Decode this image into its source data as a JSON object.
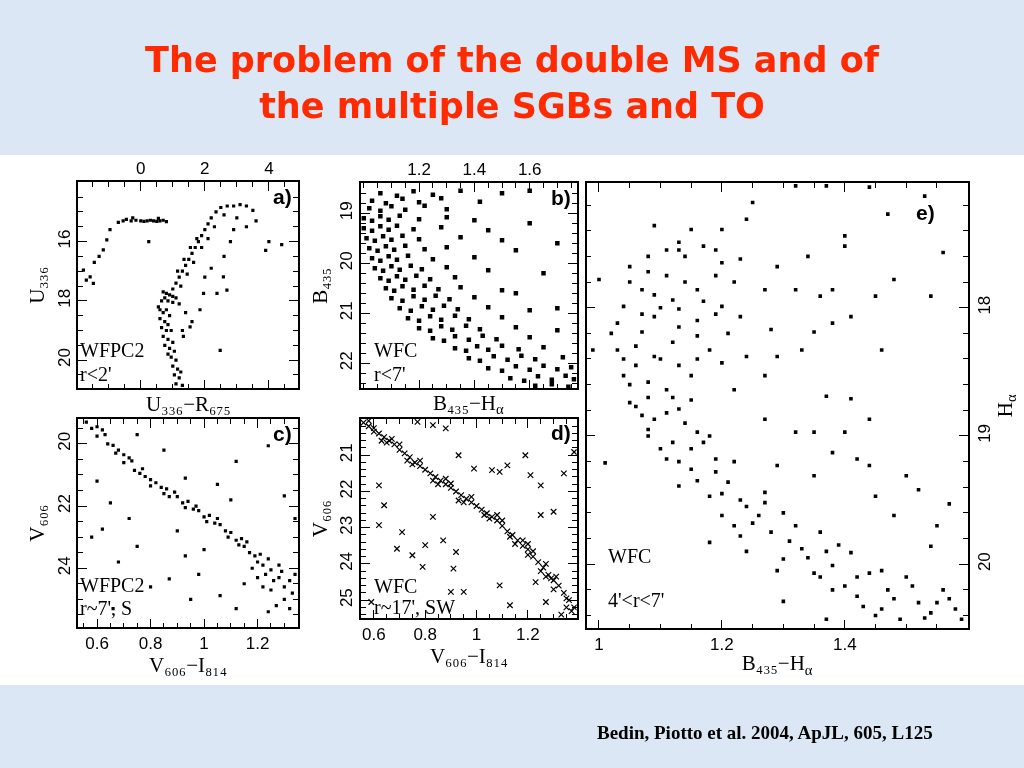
{
  "chart_data": [
    {
      "type": "scatter",
      "title": "The problem of the double MS and of the multiple SGBs and TO",
      "xlabel": "U₃₃₆−R₆₇₅",
      "ylabel": "U₃₃₆",
      "xlim": [
        -1.95,
        4.9
      ],
      "ylim": [
        20.95,
        14
      ],
      "xticks": [
        {
          "value": -1.5,
          "label": null
        },
        {
          "value": -1,
          "label": null
        },
        {
          "value": -0.5,
          "label": null
        },
        0,
        {
          "value": 0.5,
          "label": null
        },
        {
          "value": 1,
          "label": null
        },
        {
          "value": 1.5,
          "label": null
        },
        2,
        {
          "value": 2.5,
          "label": null
        },
        {
          "value": 3,
          "label": null
        },
        {
          "value": 3.5,
          "label": null
        },
        4,
        {
          "value": 4.5,
          "label": null
        }
      ],
      "yticks": [
        {
          "value": 14.5,
          "label": null
        },
        {
          "value": 15,
          "label": null
        },
        {
          "value": 15.5,
          "label": null
        },
        16,
        {
          "value": 16.5,
          "label": null
        },
        {
          "value": 17,
          "label": null
        },
        {
          "value": 17.5,
          "label": null
        },
        18,
        {
          "value": 18.5,
          "label": null
        },
        {
          "value": 19,
          "label": null
        },
        {
          "value": 19.5,
          "label": null
        },
        20,
        {
          "value": 20.5,
          "label": null
        }
      ],
      "marker": "square",
      "annotations": [
        "a)",
        "WFPC2",
        "r<2'"
      ],
      "series": [
        {
          "color": "#000000",
          "x": [
            -0.7,
            -0.55,
            -0.45,
            -0.3,
            -0.15,
            0,
            0.1,
            0.2,
            0.3,
            0.4,
            0.5,
            0.6,
            0.7,
            0.8,
            -0.25,
            0.55,
            -0.96,
            -1.06,
            -1.17,
            -1.3,
            -1.45,
            -1.79,
            -1.58,
            -1.48,
            -1.7,
            0.25,
            1.0,
            1.1,
            1.2,
            1.3,
            1.4,
            1.5,
            1.6,
            1.7,
            1.8,
            1.9,
            2.0,
            2.1,
            2.2,
            2.35,
            2.5,
            2.7,
            1.15,
            1.35,
            1.55,
            1.75,
            1.25,
            1.45,
            1.65,
            1.9,
            2.1,
            2.3,
            2.9,
            3.1,
            3.3,
            3.5,
            2.6,
            3.0,
            3.3,
            2.9,
            3.6,
            4.0,
            4.4,
            3.9,
            2.8,
            2.6,
            2.58,
            2.69,
            2.38,
            1.96,
            1.85,
            1.54,
            1.33,
            2.48,
            2.2,
            2.0,
            0.7,
            0.8,
            0.9,
            1.0,
            1.1,
            0.75,
            0.85,
            1.0,
            1.2,
            0.65,
            0.55,
            0.6,
            0.7,
            0.8,
            0.9,
            0.6,
            0.75,
            0.85,
            0.65,
            0.8,
            0.95,
            0.7,
            0.85,
            1.0,
            0.75,
            0.9,
            1.05,
            0.85,
            0.95,
            1.1,
            1.0,
            1.15,
            1.05,
            1.2,
            1.1,
            1.3,
            1.25,
            1.4,
            1.6,
            1.3
          ],
          "values": [
            15.35,
            15.3,
            15.25,
            15.3,
            15.28,
            15.3,
            15.32,
            15.3,
            15.28,
            15.3,
            15.32,
            15.3,
            15.28,
            15.33,
            15.2,
            15.22,
            15.6,
            15.94,
            16.28,
            16.5,
            16.7,
            16.96,
            17.19,
            17.41,
            17.3,
            16.0,
            17.6,
            17.4,
            17.2,
            17.0,
            16.8,
            16.6,
            16.4,
            16.2,
            16.0,
            15.8,
            15.6,
            15.4,
            15.2,
            15.0,
            14.85,
            14.8,
            17.0,
            16.6,
            16.2,
            15.9,
            17.5,
            17.1,
            16.7,
            16.2,
            15.9,
            15.5,
            14.8,
            14.75,
            14.8,
            14.95,
            15.1,
            15.2,
            15.5,
            15.6,
            15.3,
            16.0,
            16.1,
            16.3,
            16.0,
            16.5,
            17.19,
            17.64,
            17.75,
            17.75,
            18.3,
            18.88,
            19.2,
            19.67,
            16.9,
            17.2,
            17.7,
            17.75,
            17.8,
            17.85,
            17.9,
            17.9,
            18.0,
            18.05,
            18.1,
            18.0,
            18.2,
            18.3,
            18.4,
            18.3,
            18.5,
            18.6,
            18.7,
            18.8,
            18.9,
            19.0,
            19.0,
            19.2,
            19.3,
            19.4,
            19.5,
            19.6,
            19.7,
            19.8,
            19.9,
            20.0,
            20.2,
            20.3,
            20.5,
            20.6,
            20.8,
            20.85,
            20.4,
            18.4,
            18.7,
            19.0
          ]
        }
      ]
    },
    {
      "type": "scatter",
      "xlabel": "B₄₃₅−H$_{α}$",
      "ylabel": "B₄₃₅",
      "xlim": [
        0.99,
        1.77
      ],
      "ylim": [
        22.5,
        18.4
      ],
      "xticks": [
        {
          "value": 1,
          "label": null
        },
        {
          "value": 1.05,
          "label": null
        },
        {
          "value": 1.1,
          "label": null
        },
        {
          "value": 1.15,
          "label": null
        },
        1.2,
        {
          "value": 1.25,
          "label": null
        },
        {
          "value": 1.3,
          "label": null
        },
        {
          "value": 1.35,
          "label": null
        },
        1.4,
        {
          "value": 1.45,
          "label": null
        },
        {
          "value": 1.5,
          "label": null
        },
        {
          "value": 1.55,
          "label": null
        },
        1.6,
        {
          "value": 1.65,
          "label": null
        },
        {
          "value": 1.7,
          "label": null
        },
        {
          "value": 1.75,
          "label": null
        }
      ],
      "yticks": [
        {
          "value": 18.6,
          "label": null
        },
        {
          "value": 18.8,
          "label": null
        },
        19,
        {
          "value": 19.2,
          "label": null
        },
        {
          "value": 19.4,
          "label": null
        },
        {
          "value": 19.6,
          "label": null
        },
        {
          "value": 19.8,
          "label": null
        },
        20,
        {
          "value": 20.2,
          "label": null
        },
        {
          "value": 20.4,
          "label": null
        },
        {
          "value": 20.6,
          "label": null
        },
        {
          "value": 20.8,
          "label": null
        },
        21,
        {
          "value": 21.2,
          "label": null
        },
        {
          "value": 21.4,
          "label": null
        },
        {
          "value": 21.6,
          "label": null
        },
        {
          "value": 21.8,
          "label": null
        },
        22,
        {
          "value": 22.2,
          "label": null
        },
        {
          "value": 22.4,
          "label": null
        }
      ],
      "marker": "square",
      "annotations": [
        "b)",
        "WFC",
        "r<7'"
      ],
      "series": [
        {
          "color": "#000000",
          "x": [
            1.06,
            1.12,
            1.18,
            1.25,
            1.35,
            1.03,
            1.08,
            1.14,
            1.2,
            1.28,
            1.42,
            1.02,
            1.06,
            1.1,
            1.15,
            1.22,
            1.3,
            1.0,
            1.03,
            1.06,
            1.09,
            1.13,
            1.2,
            1.3,
            1.4,
            1.0,
            1.03,
            1.06,
            1.09,
            1.12,
            1.18,
            1.28,
            1.45,
            1.01,
            1.04,
            1.07,
            1.1,
            1.14,
            1.2,
            1.35,
            1.5,
            1.02,
            1.05,
            1.08,
            1.11,
            1.15,
            1.22,
            1.3,
            1.55,
            1.03,
            1.06,
            1.09,
            1.12,
            1.16,
            1.25,
            1.4,
            1.04,
            1.07,
            1.1,
            1.13,
            1.17,
            1.21,
            1.3,
            1.45,
            1.06,
            1.09,
            1.12,
            1.15,
            1.19,
            1.24,
            1.33,
            1.08,
            1.11,
            1.14,
            1.18,
            1.22,
            1.27,
            1.35,
            1.5,
            1.1,
            1.14,
            1.18,
            1.22,
            1.26,
            1.31,
            1.4,
            1.13,
            1.17,
            1.21,
            1.25,
            1.29,
            1.34,
            1.45,
            1.6,
            1.16,
            1.2,
            1.24,
            1.28,
            1.33,
            1.38,
            1.5,
            1.2,
            1.24,
            1.28,
            1.32,
            1.37,
            1.42,
            1.55,
            1.7,
            1.25,
            1.29,
            1.33,
            1.38,
            1.43,
            1.48,
            1.6,
            1.33,
            1.37,
            1.41,
            1.45,
            1.5,
            1.56,
            1.65,
            1.38,
            1.42,
            1.47,
            1.52,
            1.57,
            1.62,
            1.72,
            1.45,
            1.5,
            1.55,
            1.6,
            1.65,
            1.7,
            1.75,
            1.53,
            1.58,
            1.63,
            1.68,
            1.73,
            1.76,
            1.62,
            1.68,
            1.74,
            1.6,
            1.7,
            1.65,
            1.55,
            1.7,
            1.5,
            1.6
          ],
          "values": [
            18.6,
            18.65,
            18.56,
            18.63,
            18.55,
            18.75,
            18.8,
            18.71,
            18.78,
            18.7,
            18.77,
            18.9,
            18.95,
            18.86,
            18.93,
            18.85,
            18.92,
            19.1,
            19.15,
            19.06,
            19.13,
            19.05,
            19.12,
            19.08,
            19.14,
            19.3,
            19.35,
            19.26,
            19.33,
            19.25,
            19.32,
            19.28,
            19.34,
            19.5,
            19.55,
            19.46,
            19.53,
            19.45,
            19.52,
            19.48,
            19.54,
            19.7,
            19.75,
            19.66,
            19.73,
            19.65,
            19.72,
            19.68,
            19.74,
            19.9,
            19.95,
            19.86,
            19.93,
            19.85,
            19.92,
            19.88,
            20.1,
            20.15,
            20.06,
            20.13,
            20.05,
            20.12,
            20.08,
            20.14,
            20.3,
            20.35,
            20.26,
            20.33,
            20.25,
            20.32,
            20.28,
            20.5,
            20.55,
            20.46,
            20.53,
            20.45,
            20.52,
            20.48,
            20.54,
            20.7,
            20.75,
            20.66,
            20.73,
            20.65,
            20.72,
            20.68,
            20.9,
            20.95,
            20.86,
            20.93,
            20.85,
            20.92,
            20.88,
            20.94,
            21.1,
            21.15,
            21.06,
            21.13,
            21.05,
            21.12,
            21.08,
            21.3,
            21.35,
            21.26,
            21.33,
            21.25,
            21.32,
            21.28,
            21.34,
            21.5,
            21.55,
            21.46,
            21.53,
            21.45,
            21.52,
            21.48,
            21.7,
            21.75,
            21.66,
            21.73,
            21.65,
            21.72,
            21.68,
            21.9,
            21.95,
            21.86,
            21.93,
            21.85,
            21.92,
            21.88,
            22.1,
            22.15,
            22.06,
            22.13,
            22.05,
            22.12,
            22.08,
            22.3,
            22.35,
            22.26,
            22.33,
            22.25,
            22.32,
            22.45,
            22.42,
            22.47,
            19.2,
            19.6,
            20.2,
            20.6,
            20.9,
            18.6,
            18.55
          ]
        }
      ]
    },
    {
      "type": "scatter",
      "xlabel": "V₆₀₆−I₈₁₄",
      "ylabel": "V₆₀₆",
      "xlim": [
        0.53,
        1.35
      ],
      "ylim": [
        25.9,
        19.2
      ],
      "xticks": [
        {
          "value": 0.55,
          "label": null
        },
        0.6,
        {
          "value": 0.65,
          "label": null
        },
        {
          "value": 0.7,
          "label": null
        },
        {
          "value": 0.75,
          "label": null
        },
        0.8,
        {
          "value": 0.85,
          "label": null
        },
        {
          "value": 0.9,
          "label": null
        },
        {
          "value": 0.95,
          "label": null
        },
        1,
        {
          "value": 1.05,
          "label": null
        },
        {
          "value": 1.1,
          "label": null
        },
        {
          "value": 1.15,
          "label": null
        },
        1.2,
        {
          "value": 1.25,
          "label": null
        },
        {
          "value": 1.3,
          "label": null
        }
      ],
      "yticks": [
        {
          "value": 19.5,
          "label": null
        },
        20,
        {
          "value": 20.5,
          "label": null
        },
        {
          "value": 21,
          "label": null
        },
        {
          "value": 21.5,
          "label": null
        },
        22,
        {
          "value": 22.5,
          "label": null
        },
        {
          "value": 23,
          "label": null
        },
        {
          "value": 23.5,
          "label": null
        },
        24,
        {
          "value": 24.5,
          "label": null
        },
        {
          "value": 25,
          "label": null
        },
        {
          "value": 25.5,
          "label": null
        }
      ],
      "marker": "square",
      "annotations": [
        "c)",
        "WFPC2",
        "r~7', S"
      ],
      "series": [
        {
          "color": "#000000",
          "x": [
            0.56,
            0.58,
            0.6,
            0.6,
            0.63,
            0.64,
            0.66,
            0.67,
            0.7,
            0.7,
            0.73,
            0.74,
            0.77,
            0.78,
            0.8,
            0.82,
            0.84,
            0.86,
            0.87,
            0.9,
            0.92,
            0.94,
            0.96,
            0.98,
            1.0,
            1.02,
            1.04,
            1.06,
            1.08,
            1.1,
            1.12,
            1.14,
            1.15,
            1.17,
            1.19,
            1.2,
            1.22,
            1.23,
            1.25,
            1.26,
            1.28,
            1.3,
            1.32,
            1.33,
            1.2,
            1.25,
            1.3,
            1.18,
            1.28,
            1.34,
            1.22,
            1.32,
            1.27,
            0.62,
            0.68,
            0.72,
            0.76,
            0.8,
            0.85,
            0.89,
            0.93,
            0.97,
            1.01,
            1.05,
            1.09,
            1.13,
            1.16,
            1.21,
            1.24,
            1.29,
            0.62,
            0.68,
            0.87,
            1.06,
            1.12,
            1.24,
            0.6,
            0.65,
            0.72,
            0.58,
            0.75,
            0.8,
            0.93,
            1.0,
            0.93,
            1.12,
            1.24,
            1.3,
            1.05,
            0.85,
            0.75,
            0.95,
            1.15,
            0.66,
            1.34,
            1.1,
            0.98,
            0.9
          ],
          "values": [
            19.3,
            19.5,
            19.45,
            19.75,
            19.7,
            20.0,
            20.05,
            20.3,
            20.35,
            20.6,
            20.55,
            20.85,
            20.8,
            21.05,
            21.15,
            21.25,
            21.4,
            21.45,
            21.7,
            21.7,
            21.9,
            21.85,
            22.1,
            22.15,
            22.35,
            22.3,
            22.55,
            22.6,
            22.8,
            22.85,
            23.1,
            23.05,
            23.3,
            23.5,
            23.6,
            23.8,
            23.9,
            24.2,
            24.05,
            24.4,
            24.3,
            24.6,
            24.4,
            24.8,
            24.3,
            24.7,
            25.0,
            24.0,
            23.9,
            24.2,
            24.6,
            25.3,
            25.2,
            19.55,
            20.2,
            20.45,
            20.95,
            21.35,
            21.6,
            21.55,
            22.05,
            22.0,
            22.5,
            22.4,
            23.0,
            23.25,
            23.15,
            23.55,
            23.7,
            24.1,
            22.74,
            23.8,
            24.34,
            24.88,
            25.3,
            25.4,
            21.2,
            21.9,
            22.4,
            23.0,
            23.3,
            24.6,
            23.6,
            23.4,
            21.1,
            20.56,
            20.06,
            21.67,
            21.3,
            20.2,
            19.7,
            25.0,
            24.5,
            25.3,
            22.4,
            21.8,
            24.2,
            22.8
          ]
        }
      ]
    },
    {
      "type": "scatter",
      "xlabel": "V₆₀₆−I₈₁₄",
      "ylabel": "V₆₀₆",
      "xlim": [
        0.55,
        1.39
      ],
      "ylim": [
        25.5,
        20
      ],
      "xticks": [
        0.6,
        {
          "value": 0.65,
          "label": null
        },
        {
          "value": 0.7,
          "label": null
        },
        {
          "value": 0.75,
          "label": null
        },
        0.8,
        {
          "value": 0.85,
          "label": null
        },
        {
          "value": 0.9,
          "label": null
        },
        {
          "value": 0.95,
          "label": null
        },
        1,
        {
          "value": 1.05,
          "label": null
        },
        {
          "value": 1.1,
          "label": null
        },
        {
          "value": 1.15,
          "label": null
        },
        1.2,
        {
          "value": 1.25,
          "label": null
        },
        {
          "value": 1.3,
          "label": null
        },
        {
          "value": 1.35,
          "label": null
        }
      ],
      "yticks": [
        {
          "value": 20.2,
          "label": null
        },
        {
          "value": 20.4,
          "label": null
        },
        {
          "value": 20.6,
          "label": null
        },
        {
          "value": 20.8,
          "label": null
        },
        21,
        {
          "value": 21.2,
          "label": null
        },
        {
          "value": 21.4,
          "label": null
        },
        {
          "value": 21.6,
          "label": null
        },
        {
          "value": 21.8,
          "label": null
        },
        22,
        {
          "value": 22.2,
          "label": null
        },
        {
          "value": 22.4,
          "label": null
        },
        {
          "value": 22.6,
          "label": null
        },
        {
          "value": 22.8,
          "label": null
        },
        23,
        {
          "value": 23.2,
          "label": null
        },
        {
          "value": 23.4,
          "label": null
        },
        {
          "value": 23.6,
          "label": null
        },
        {
          "value": 23.8,
          "label": null
        },
        24,
        {
          "value": 24.2,
          "label": null
        },
        {
          "value": 24.4,
          "label": null
        },
        {
          "value": 24.6,
          "label": null
        },
        {
          "value": 24.8,
          "label": null
        },
        25,
        {
          "value": 25.2,
          "label": null
        },
        {
          "value": 25.4,
          "label": null
        }
      ],
      "marker": "cross",
      "annotations": [
        "d)",
        "WFC",
        "r~17', SW"
      ],
      "series": [
        {
          "color": "#000000",
          "x": [
            0.56,
            0.58,
            0.6,
            0.62,
            0.64,
            0.66,
            0.68,
            0.7,
            0.72,
            0.74,
            0.76,
            0.78,
            0.8,
            0.82,
            0.84,
            0.86,
            0.88,
            0.9,
            0.92,
            0.94,
            0.96,
            0.98,
            1.0,
            1.02,
            1.04,
            1.06,
            1.08,
            1.1,
            1.12,
            1.14,
            1.16,
            1.18,
            1.2,
            1.22,
            1.24,
            1.26,
            1.28,
            1.3,
            1.32,
            1.34,
            1.36,
            1.38,
            0.6,
            0.65,
            0.75,
            0.85,
            0.95,
            1.05,
            1.15,
            1.25,
            1.3,
            1.35,
            1.23,
            1.27,
            1.33,
            0.7,
            0.9,
            1.1,
            1.2,
            0.58,
            0.63,
            0.67,
            0.73,
            0.78,
            0.83,
            0.88,
            0.93,
            0.98,
            1.03,
            1.08,
            1.13,
            1.18,
            1.22,
            1.27,
            1.31,
            1.35,
            1.37,
            1.29,
            1.2,
            0.62,
            0.64,
            0.62,
            0.69,
            0.75,
            0.79,
            0.8,
            0.83,
            0.87,
            0.92,
            0.93,
            0.99,
            1.06,
            1.09,
            1.12,
            1.19,
            1.21,
            1.25,
            1.3,
            1.34,
            1.38,
            1.09,
            1.13,
            0.9,
            0.95,
            0.59,
            0.71,
            1.25,
            1.27,
            0.77,
            0.83,
            0.88,
            0.91
          ],
          "values": [
            20.1,
            20.2,
            20.25,
            20.4,
            20.5,
            20.6,
            20.7,
            20.85,
            20.95,
            21.05,
            21.2,
            21.3,
            21.4,
            21.5,
            21.6,
            21.7,
            21.8,
            21.9,
            22.0,
            22.1,
            22.2,
            22.3,
            22.4,
            22.5,
            22.6,
            22.7,
            22.8,
            22.95,
            23.1,
            23.2,
            23.35,
            23.5,
            23.6,
            23.8,
            23.95,
            24.1,
            24.3,
            24.45,
            24.6,
            24.8,
            25.0,
            25.2,
            20.35,
            20.65,
            21.25,
            21.8,
            22.3,
            22.75,
            23.45,
            24.2,
            24.7,
            25.2,
            24.5,
            24.0,
            25.4,
            20.7,
            21.78,
            22.8,
            23.45,
            20.05,
            20.6,
            20.55,
            21.15,
            21.15,
            21.7,
            21.65,
            22.25,
            22.15,
            22.65,
            22.65,
            23.25,
            23.35,
            23.65,
            24.35,
            24.35,
            24.95,
            25.3,
            24.4,
            23.75,
            21.83,
            22.38,
            22.93,
            23.58,
            23.76,
            24.08,
            23.48,
            22.7,
            23.35,
            23.67,
            21.0,
            21.37,
            21.41,
            21.46,
            21.28,
            21.0,
            21.55,
            21.83,
            22.56,
            21.5,
            20.91,
            24.59,
            25.14,
            24.77,
            24.77,
            25.05,
            23.12,
            22.65,
            25.05,
            20.08,
            20.17,
            20.26,
            24.13
          ]
        }
      ]
    },
    {
      "type": "scatter",
      "xlabel": "B₄₃₅−H$_{α}$",
      "ylabel": "H$_{α}$",
      "xlim": [
        0.98,
        1.6
      ],
      "ylim": [
        20.5,
        17.03
      ],
      "xticks": [
        1,
        {
          "value": 1.05,
          "label": null
        },
        {
          "value": 1.1,
          "label": null
        },
        {
          "value": 1.15,
          "label": null
        },
        1.2,
        {
          "value": 1.25,
          "label": null
        },
        {
          "value": 1.3,
          "label": null
        },
        {
          "value": 1.35,
          "label": null
        },
        1.4,
        {
          "value": 1.45,
          "label": null
        },
        {
          "value": 1.5,
          "label": null
        },
        {
          "value": 1.55,
          "label": null
        }
      ],
      "yticks": [
        {
          "value": 17.2,
          "label": null
        },
        {
          "value": 17.4,
          "label": null
        },
        {
          "value": 17.6,
          "label": null
        },
        {
          "value": 17.8,
          "label": null
        },
        18,
        {
          "value": 18.2,
          "label": null
        },
        {
          "value": 18.4,
          "label": null
        },
        {
          "value": 18.6,
          "label": null
        },
        {
          "value": 18.8,
          "label": null
        },
        19,
        {
          "value": 19.2,
          "label": null
        },
        {
          "value": 19.4,
          "label": null
        },
        {
          "value": 19.6,
          "label": null
        },
        {
          "value": 19.8,
          "label": null
        },
        20,
        {
          "value": 20.2,
          "label": null
        },
        {
          "value": 20.4,
          "label": null
        }
      ],
      "marker": "square",
      "annotations": [
        "e)",
        "WFC",
        "4'<r<7'",
        "Bedin, Piotto et al. 2004, ApJL, 605, L125"
      ],
      "series": [
        {
          "color": "#000000",
          "x": [
            1.04,
            1.07,
            1.11,
            1.14,
            1.17,
            1.05,
            1.08,
            1.11,
            1.13,
            1.03,
            1.03,
            1.04,
            1.05,
            1.07,
            1.09,
            1.12,
            1.16,
            1.19,
            1.09,
            1.12,
            1.08,
            1.11,
            1.15,
            1.18,
            1.07,
            1.11,
            1.13,
            1.06,
            1.09,
            1.14,
            1.08,
            1.12,
            1.16,
            1.11,
            1.15,
            1.19,
            1.13,
            1.18,
            1.21,
            1.2,
            1.24,
            1.27,
            1.23,
            1.28,
            1.3,
            1.33,
            1.36,
            1.38,
            1.41,
            1.4,
            1.44,
            1.48,
            1.51,
            1.54,
            1.57,
            1.59,
            1.49,
            1.43,
            1.35,
            1.3,
            1.02,
            1.06,
            1.09,
            1.13,
            1.2,
            1.16,
            1.08,
            1.17,
            1.22,
            1.26,
            1.31,
            1.37,
            1.42,
            1.46,
            1.52,
            1.56,
            1.24,
            1.29,
            1.38,
            1.45,
            1.25,
            1.32,
            1.37,
            1.44,
            1.53,
            1.56,
            1.47,
            1.4,
            1.54,
            1.48,
            1.45,
            1.38,
            1.36,
            1.41,
            1.38,
            1.35,
            1.46,
            1.33,
            1.29,
            1.28,
            1.32,
            1.29,
            1.34,
            1.4,
            1.24,
            1.2,
            1.15,
            1.09,
            1.19,
            1.13,
            1.23,
            1.27,
            1.23,
            1.2,
            1.24,
            1.27,
            1.37,
            1.41,
            1.22,
            1.2,
            1.16,
            1.13,
            1.0,
            0.99,
            1.35,
            1.4,
            1.44,
            1.38,
            1.42,
            1.44,
            1.5,
            1.52,
            1.57,
            1.55,
            1.45,
            1.48,
            1.29,
            1.32,
            1.27,
            1.35,
            1.01,
            1.18,
            1.3,
            1.37,
            1.54,
            1.05,
            1.08,
            1.1,
            1.14,
            1.06,
            1.1,
            1.13,
            1.16,
            1.05,
            1.08,
            1.12,
            1.15,
            1.04,
            1.07,
            1.17,
            1.19,
            1.22,
            1.21,
            1.1,
            1.13,
            1.16,
            1.2,
            1.23,
            1.19,
            1.25,
            1.27,
            1.22,
            1.15,
            1.18,
            1.32,
            1.34,
            1.39,
            1.42,
            1.47,
            1.5,
            1.53,
            1.55,
            1.58,
            1.46,
            1.36
          ],
          "values": [
            17.99,
            17.86,
            17.75,
            17.6,
            17.52,
            17.68,
            17.6,
            17.55,
            17.49,
            18.12,
            18.33,
            18.53,
            18.74,
            18.19,
            18.07,
            17.94,
            17.86,
            17.75,
            18.38,
            18.27,
            18.58,
            18.64,
            18.53,
            18.33,
            18.84,
            18.82,
            18.79,
            18.77,
            18.87,
            18.9,
            19.0,
            19.05,
            18.97,
            19.18,
            19.26,
            19.18,
            19.39,
            19.47,
            19.36,
            19.62,
            19.55,
            19.44,
            19.78,
            19.75,
            19.6,
            19.88,
            19.75,
            20.01,
            19.91,
            20.17,
            20.07,
            20.27,
            20.17,
            20.38,
            20.27,
            20.43,
            20.43,
            20.33,
            20.07,
            19.96,
            18.2,
            18.45,
            17.9,
            18.15,
            17.65,
            18.1,
            18.95,
            19.05,
            19.2,
            19.62,
            19.82,
            19.9,
            20.1,
            20.05,
            20.3,
            20.2,
            19.9,
            20.05,
            20.2,
            20.4,
            17.18,
            17.05,
            17.05,
            17.06,
            17.13,
            17.57,
            17.27,
            17.44,
            17.91,
            17.78,
            17.91,
            17.86,
            17.91,
            18.07,
            18.12,
            18.19,
            18.33,
            18.33,
            18.38,
            18.17,
            17.86,
            17.68,
            17.6,
            17.52,
            17.31,
            17.39,
            17.39,
            17.36,
            17.55,
            17.55,
            17.62,
            17.86,
            18.07,
            17.99,
            18.38,
            18.53,
            18.69,
            18.71,
            18.64,
            18.43,
            18.22,
            18.01,
            17.78,
            18.33,
            18.97,
            18.97,
            18.87,
            19.13,
            19.18,
            19.23,
            19.31,
            19.42,
            19.53,
            19.7,
            19.47,
            19.62,
            19.23,
            18.97,
            18.87,
            19.31,
            19.21,
            19.83,
            20.29,
            20.43,
            19.86,
            17.8,
            17.72,
            18.0,
            17.8,
            18.3,
            18.4,
            18.45,
            18.4,
            18.6,
            18.7,
            18.7,
            18.72,
            18.4,
            18.05,
            17.95,
            18.05,
            17.8,
            18.2,
            19.1,
            19.2,
            19.35,
            19.45,
            19.5,
            19.28,
            19.68,
            19.52,
            19.7,
            19.1,
            19.0,
            19.7,
            19.95,
            19.85,
            20.25,
            20.2,
            20.1,
            20.42,
            20.3,
            20.35,
            20.35,
            20.1
          ]
        }
      ]
    }
  ]
}
